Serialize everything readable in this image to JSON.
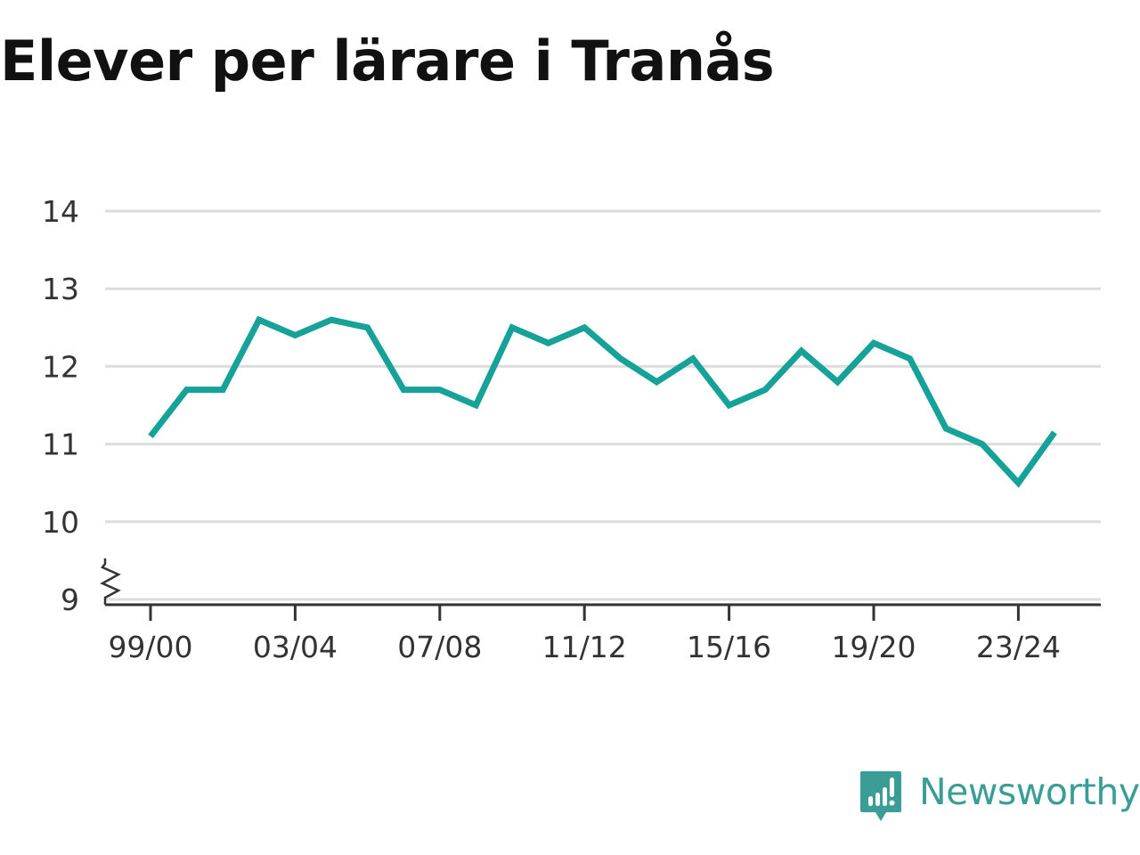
{
  "title": "Elever per lärare i Tranås",
  "brand": {
    "name": "Newsworthy",
    "icon": "newsworthy-logo-icon"
  },
  "colors": {
    "line": "#16a298",
    "grid": "#dddddd",
    "axis": "#333333",
    "text": "#111111",
    "brand": "#3a9e96"
  },
  "chart_data": {
    "type": "line",
    "title": "Elever per lärare i Tranås",
    "xlabel": "",
    "ylabel": "",
    "ylim": [
      9,
      14
    ],
    "y_axis_break": true,
    "yticks": [
      9,
      10,
      11,
      12,
      13,
      14
    ],
    "xtick_labels": [
      "99/00",
      "03/04",
      "07/08",
      "11/12",
      "15/16",
      "19/20",
      "23/24"
    ],
    "grid": true,
    "legend": "none",
    "x": [
      "99/00",
      "00/01",
      "01/02",
      "02/03",
      "03/04",
      "04/05",
      "05/06",
      "06/07",
      "07/08",
      "08/09",
      "09/10",
      "10/11",
      "11/12",
      "12/13",
      "13/14",
      "14/15",
      "15/16",
      "16/17",
      "17/18",
      "18/19",
      "19/20",
      "20/21",
      "21/22",
      "22/23",
      "23/24",
      "24/25"
    ],
    "series": [
      {
        "values": [
          11.1,
          11.7,
          11.7,
          12.6,
          12.4,
          12.6,
          12.5,
          11.7,
          11.7,
          11.5,
          12.5,
          12.3,
          12.5,
          12.1,
          11.8,
          12.1,
          11.5,
          11.7,
          12.2,
          11.8,
          12.3,
          12.1,
          11.2,
          11.0,
          10.5,
          11.15
        ]
      }
    ]
  }
}
